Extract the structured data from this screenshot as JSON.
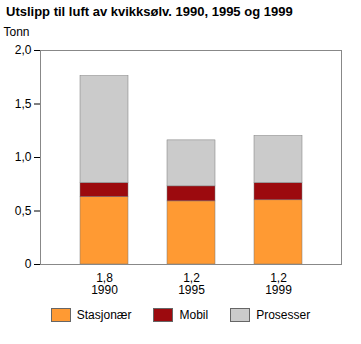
{
  "chart_data": {
    "type": "bar",
    "stacked": true,
    "title": "Utslipp til luft av kvikksølv. 1990, 1995 og 1999",
    "y_label": "Tonn",
    "categories": [
      "1,8\n1990",
      "1,2\n1995",
      "1,2\n1999"
    ],
    "series": [
      {
        "name": "Stasjonær",
        "color": "#ff9a33",
        "values": [
          0.63,
          0.59,
          0.6
        ]
      },
      {
        "name": "Mobil",
        "color": "#9c0a0e",
        "values": [
          0.13,
          0.14,
          0.16
        ]
      },
      {
        "name": "Prosesser",
        "color": "#cbcbcb",
        "values": [
          1.0,
          0.43,
          0.44
        ]
      }
    ],
    "ylim": [
      0,
      2
    ],
    "yticks": [
      0,
      {
        "value": 0.5,
        "label": "0,5"
      },
      {
        "value": 1,
        "label": "1,0"
      },
      {
        "value": 1.5,
        "label": "1,5"
      },
      {
        "value": 2,
        "label": "2,0"
      }
    ],
    "grid": false,
    "legend": "bottom"
  }
}
